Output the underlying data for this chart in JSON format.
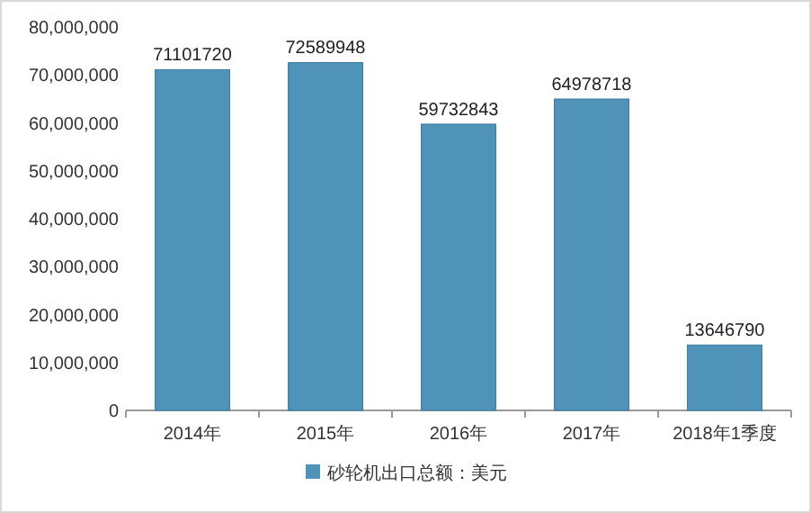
{
  "chart_data": {
    "type": "bar",
    "categories": [
      "2014年",
      "2015年",
      "2016年",
      "2017年",
      "2018年1季度"
    ],
    "series": [
      {
        "name": "砂轮机出口总额：美元",
        "color": "#4f93b8",
        "values": [
          71101720,
          72589948,
          59732843,
          64978718,
          13646790
        ]
      }
    ],
    "ylim": [
      0,
      80000000
    ],
    "yticks": [
      {
        "value": 0,
        "label": "0"
      },
      {
        "value": 10000000,
        "label": "10,000,000"
      },
      {
        "value": 20000000,
        "label": "20,000,000"
      },
      {
        "value": 30000000,
        "label": "30,000,000"
      },
      {
        "value": 40000000,
        "label": "40,000,000"
      },
      {
        "value": 50000000,
        "label": "50,000,000"
      },
      {
        "value": 60000000,
        "label": "60,000,000"
      },
      {
        "value": 70000000,
        "label": "70,000,000"
      },
      {
        "value": 80000000,
        "label": "80,000,000"
      }
    ],
    "data_labels": true,
    "legend": "bottom",
    "grid": false
  }
}
